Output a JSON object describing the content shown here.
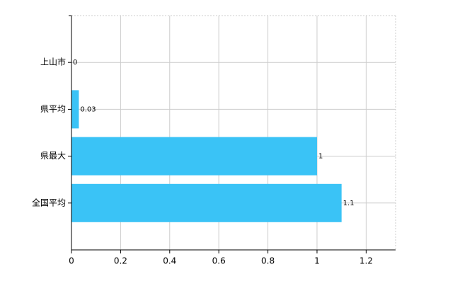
{
  "chart_data": {
    "type": "bar",
    "orientation": "horizontal",
    "categories": [
      "上山市",
      "県平均",
      "県最大",
      "全国平均"
    ],
    "values": [
      0,
      0.03,
      1,
      1.1
    ],
    "color": "#3ac3f6",
    "xlim": [
      0,
      1.32
    ],
    "xticks": [
      0,
      0.2,
      0.4,
      0.6,
      0.8,
      1,
      1.2
    ],
    "grid": true
  }
}
